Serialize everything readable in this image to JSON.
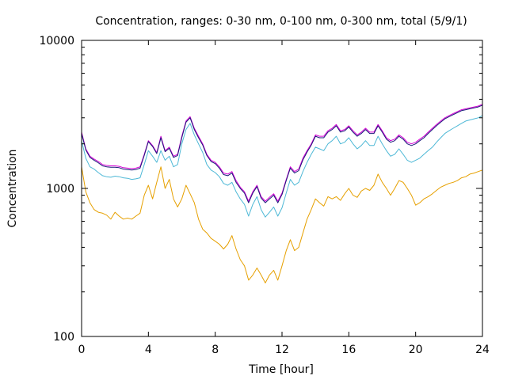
{
  "chart_data": {
    "type": "line",
    "title": "Concentration, ranges: 0-30 nm, 0-100 nm, 0-300 nm, total (5/9/1)",
    "xlabel": "Time [hour]",
    "ylabel": "Concentration",
    "xlim": [
      0,
      24
    ],
    "ylim": [
      100,
      10000
    ],
    "yscale": "log",
    "grid": false,
    "legend": "none",
    "x_ticks": [
      0,
      4,
      8,
      12,
      16,
      20,
      24
    ],
    "x_tick_labels": [
      "0",
      "4",
      "8",
      "12",
      "16",
      "20",
      "24"
    ],
    "y_ticks": [
      100,
      1000,
      10000
    ],
    "y_tick_labels": [
      "100",
      "1000",
      "10000"
    ],
    "x": [
      0,
      0.25,
      0.5,
      0.75,
      1,
      1.25,
      1.5,
      1.75,
      2,
      2.25,
      2.5,
      2.75,
      3,
      3.25,
      3.5,
      3.75,
      4,
      4.25,
      4.5,
      4.75,
      5,
      5.25,
      5.5,
      5.75,
      6,
      6.25,
      6.5,
      6.75,
      7,
      7.25,
      7.5,
      7.75,
      8,
      8.25,
      8.5,
      8.75,
      9,
      9.25,
      9.5,
      9.75,
      10,
      10.25,
      10.5,
      10.75,
      11,
      11.25,
      11.5,
      11.75,
      12,
      12.25,
      12.5,
      12.75,
      13,
      13.25,
      13.5,
      13.75,
      14,
      14.25,
      14.5,
      14.75,
      15,
      15.25,
      15.5,
      15.75,
      16,
      16.25,
      16.5,
      16.75,
      17,
      17.25,
      17.5,
      17.75,
      18,
      18.25,
      18.5,
      18.75,
      19,
      19.25,
      19.5,
      19.75,
      20,
      20.25,
      20.5,
      20.75,
      21,
      21.25,
      21.5,
      21.75,
      22,
      22.25,
      22.5,
      22.75,
      23,
      23.25,
      23.5,
      23.75,
      24
    ],
    "series": [
      {
        "color": "#e6a000",
        "values": [
          1400,
          950,
          800,
          720,
          690,
          680,
          660,
          620,
          690,
          650,
          620,
          630,
          620,
          650,
          680,
          900,
          1050,
          850,
          1100,
          1400,
          1000,
          1150,
          850,
          750,
          850,
          1050,
          920,
          800,
          620,
          530,
          500,
          460,
          440,
          420,
          390,
          420,
          480,
          390,
          330,
          300,
          240,
          260,
          290,
          260,
          230,
          260,
          280,
          240,
          300,
          380,
          450,
          380,
          400,
          500,
          620,
          720,
          850,
          800,
          760,
          880,
          850,
          880,
          830,
          920,
          1000,
          900,
          870,
          960,
          1000,
          970,
          1050,
          1250,
          1100,
          1000,
          900,
          1000,
          1130,
          1100,
          1000,
          900,
          770,
          800,
          850,
          880,
          920,
          970,
          1020,
          1050,
          1080,
          1100,
          1130,
          1180,
          1200,
          1250,
          1270,
          1300,
          1330
        ]
      },
      {
        "color": "#4db8d6",
        "values": [
          2100,
          1600,
          1400,
          1350,
          1280,
          1220,
          1200,
          1190,
          1210,
          1200,
          1180,
          1170,
          1150,
          1160,
          1180,
          1450,
          1800,
          1650,
          1500,
          1800,
          1550,
          1650,
          1400,
          1450,
          2000,
          2500,
          2750,
          2300,
          2000,
          1750,
          1450,
          1330,
          1280,
          1200,
          1080,
          1050,
          1100,
          950,
          850,
          780,
          650,
          780,
          880,
          720,
          640,
          690,
          750,
          650,
          740,
          930,
          1150,
          1050,
          1100,
          1300,
          1500,
          1700,
          1900,
          1850,
          1800,
          2000,
          2100,
          2250,
          2000,
          2050,
          2200,
          2000,
          1850,
          1950,
          2100,
          1950,
          1950,
          2250,
          2000,
          1800,
          1650,
          1700,
          1850,
          1700,
          1550,
          1500,
          1550,
          1600,
          1700,
          1800,
          1900,
          2050,
          2200,
          2350,
          2450,
          2550,
          2650,
          2750,
          2850,
          2900,
          2950,
          3000,
          3100
        ]
      },
      {
        "color": "#d400d4",
        "values": [
          2400,
          1850,
          1650,
          1580,
          1520,
          1450,
          1430,
          1420,
          1420,
          1410,
          1380,
          1370,
          1360,
          1370,
          1400,
          1700,
          2100,
          1950,
          1750,
          2250,
          1800,
          1900,
          1650,
          1700,
          2250,
          2850,
          3050,
          2550,
          2250,
          2000,
          1700,
          1550,
          1500,
          1400,
          1270,
          1250,
          1300,
          1130,
          1020,
          950,
          820,
          950,
          1050,
          880,
          820,
          870,
          920,
          820,
          930,
          1150,
          1400,
          1300,
          1350,
          1600,
          1800,
          2000,
          2300,
          2250,
          2250,
          2450,
          2550,
          2700,
          2450,
          2500,
          2650,
          2450,
          2300,
          2400,
          2550,
          2400,
          2400,
          2700,
          2450,
          2200,
          2100,
          2150,
          2300,
          2200,
          2050,
          2000,
          2050,
          2150,
          2250,
          2400,
          2550,
          2700,
          2850,
          3000,
          3100,
          3200,
          3300,
          3400,
          3450,
          3500,
          3550,
          3600,
          3700
        ]
      },
      {
        "color": "#1a1a7a",
        "values": [
          2350,
          1820,
          1620,
          1550,
          1490,
          1420,
          1400,
          1390,
          1390,
          1380,
          1350,
          1340,
          1330,
          1340,
          1370,
          1670,
          2070,
          1920,
          1720,
          2200,
          1770,
          1870,
          1620,
          1670,
          2200,
          2800,
          3000,
          2500,
          2200,
          1960,
          1670,
          1520,
          1470,
          1370,
          1240,
          1220,
          1270,
          1100,
          1000,
          930,
          800,
          930,
          1030,
          860,
          800,
          850,
          900,
          800,
          910,
          1130,
          1370,
          1270,
          1320,
          1560,
          1760,
          1960,
          2250,
          2200,
          2200,
          2400,
          2500,
          2650,
          2400,
          2450,
          2600,
          2400,
          2250,
          2350,
          2500,
          2350,
          2350,
          2650,
          2400,
          2150,
          2050,
          2100,
          2250,
          2150,
          2000,
          1950,
          2000,
          2100,
          2200,
          2350,
          2500,
          2650,
          2800,
          2950,
          3050,
          3150,
          3250,
          3350,
          3400,
          3450,
          3500,
          3550,
          3650
        ]
      }
    ]
  }
}
